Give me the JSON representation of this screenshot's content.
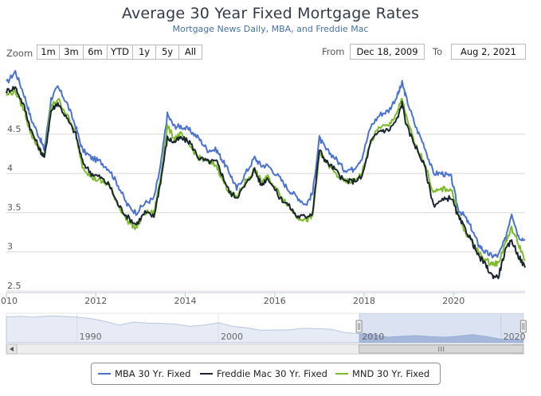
{
  "header": {
    "title": "Average 30 Year Fixed Mortgage Rates",
    "subtitle": "Mortgage News Daily, MBA, and Freddie Mac"
  },
  "toolbar": {
    "zoom_label": "Zoom",
    "zoom_buttons": [
      "1m",
      "3m",
      "6m",
      "YTD",
      "1y",
      "5y",
      "All"
    ],
    "from_label": "From",
    "from_value": "Dec 18, 2009",
    "to_label": "To",
    "to_value": "Aug 2, 2021"
  },
  "colors": {
    "mba": "#4a72d0",
    "freddie": "#1b2530",
    "mnd": "#7dbb2c",
    "navigator_fill": "#c8d3e8"
  },
  "chart_data": {
    "type": "line",
    "title": "Average 30 Year Fixed Mortgage Rates",
    "subtitle": "Mortgage News Daily, MBA, and Freddie Mac",
    "xlim": [
      2010.0,
      2021.6
    ],
    "ylim": [
      2.5,
      5.4
    ],
    "x_ticks": [
      "2010",
      "2012",
      "2014",
      "2016",
      "2018",
      "2020"
    ],
    "y_ticks": [
      "2.5",
      "3",
      "3.5",
      "4",
      "4.5"
    ],
    "grid": true,
    "legend_position": "bottom",
    "series": [
      {
        "name": "MBA 30 Yr. Fixed",
        "color": "#4a72d0",
        "points": [
          [
            2010.0,
            5.15
          ],
          [
            2010.2,
            5.3
          ],
          [
            2010.4,
            5.0
          ],
          [
            2010.55,
            4.7
          ],
          [
            2010.75,
            4.45
          ],
          [
            2010.85,
            4.3
          ],
          [
            2011.0,
            4.95
          ],
          [
            2011.15,
            5.1
          ],
          [
            2011.35,
            4.9
          ],
          [
            2011.55,
            4.6
          ],
          [
            2011.7,
            4.3
          ],
          [
            2011.9,
            4.2
          ],
          [
            2012.1,
            4.15
          ],
          [
            2012.3,
            4.05
          ],
          [
            2012.5,
            3.85
          ],
          [
            2012.7,
            3.6
          ],
          [
            2012.9,
            3.5
          ],
          [
            2013.1,
            3.62
          ],
          [
            2013.3,
            3.68
          ],
          [
            2013.45,
            4.1
          ],
          [
            2013.6,
            4.75
          ],
          [
            2013.75,
            4.6
          ],
          [
            2013.9,
            4.6
          ],
          [
            2014.1,
            4.55
          ],
          [
            2014.3,
            4.45
          ],
          [
            2014.5,
            4.3
          ],
          [
            2014.7,
            4.3
          ],
          [
            2014.85,
            4.15
          ],
          [
            2015.0,
            4.0
          ],
          [
            2015.15,
            3.8
          ],
          [
            2015.35,
            4.0
          ],
          [
            2015.55,
            4.2
          ],
          [
            2015.7,
            4.1
          ],
          [
            2015.85,
            4.1
          ],
          [
            2016.1,
            3.95
          ],
          [
            2016.3,
            3.8
          ],
          [
            2016.5,
            3.7
          ],
          [
            2016.7,
            3.6
          ],
          [
            2016.85,
            3.75
          ],
          [
            2017.0,
            4.45
          ],
          [
            2017.15,
            4.3
          ],
          [
            2017.35,
            4.2
          ],
          [
            2017.55,
            4.05
          ],
          [
            2017.75,
            4.05
          ],
          [
            2017.95,
            4.2
          ],
          [
            2018.15,
            4.6
          ],
          [
            2018.35,
            4.75
          ],
          [
            2018.55,
            4.8
          ],
          [
            2018.75,
            5.0
          ],
          [
            2018.85,
            5.15
          ],
          [
            2018.95,
            4.95
          ],
          [
            2019.15,
            4.6
          ],
          [
            2019.35,
            4.35
          ],
          [
            2019.55,
            4.0
          ],
          [
            2019.75,
            4.0
          ],
          [
            2019.95,
            3.95
          ],
          [
            2020.1,
            3.55
          ],
          [
            2020.25,
            3.45
          ],
          [
            2020.4,
            3.3
          ],
          [
            2020.55,
            3.1
          ],
          [
            2020.7,
            3.0
          ],
          [
            2020.85,
            2.95
          ],
          [
            2021.0,
            2.95
          ],
          [
            2021.15,
            3.15
          ],
          [
            2021.3,
            3.5
          ],
          [
            2021.45,
            3.2
          ],
          [
            2021.6,
            3.15
          ]
        ]
      },
      {
        "name": "Freddie Mac 30 Yr. Fixed",
        "color": "#1b2530",
        "points": [
          [
            2010.0,
            5.05
          ],
          [
            2010.2,
            5.1
          ],
          [
            2010.4,
            4.85
          ],
          [
            2010.55,
            4.55
          ],
          [
            2010.75,
            4.3
          ],
          [
            2010.85,
            4.2
          ],
          [
            2011.0,
            4.8
          ],
          [
            2011.15,
            4.9
          ],
          [
            2011.35,
            4.7
          ],
          [
            2011.55,
            4.5
          ],
          [
            2011.7,
            4.15
          ],
          [
            2011.9,
            4.0
          ],
          [
            2012.1,
            3.95
          ],
          [
            2012.3,
            3.85
          ],
          [
            2012.5,
            3.6
          ],
          [
            2012.7,
            3.45
          ],
          [
            2012.9,
            3.35
          ],
          [
            2013.1,
            3.5
          ],
          [
            2013.3,
            3.45
          ],
          [
            2013.45,
            3.9
          ],
          [
            2013.6,
            4.45
          ],
          [
            2013.75,
            4.4
          ],
          [
            2013.9,
            4.45
          ],
          [
            2014.1,
            4.4
          ],
          [
            2014.3,
            4.2
          ],
          [
            2014.5,
            4.15
          ],
          [
            2014.7,
            4.15
          ],
          [
            2014.85,
            3.95
          ],
          [
            2015.0,
            3.75
          ],
          [
            2015.15,
            3.7
          ],
          [
            2015.35,
            3.85
          ],
          [
            2015.55,
            4.05
          ],
          [
            2015.7,
            3.85
          ],
          [
            2015.85,
            3.95
          ],
          [
            2016.1,
            3.7
          ],
          [
            2016.3,
            3.6
          ],
          [
            2016.5,
            3.45
          ],
          [
            2016.7,
            3.45
          ],
          [
            2016.85,
            3.5
          ],
          [
            2017.0,
            4.3
          ],
          [
            2017.15,
            4.15
          ],
          [
            2017.35,
            4.05
          ],
          [
            2017.55,
            3.9
          ],
          [
            2017.75,
            3.9
          ],
          [
            2017.95,
            3.95
          ],
          [
            2018.15,
            4.4
          ],
          [
            2018.35,
            4.55
          ],
          [
            2018.55,
            4.55
          ],
          [
            2018.75,
            4.7
          ],
          [
            2018.85,
            4.9
          ],
          [
            2018.95,
            4.6
          ],
          [
            2019.15,
            4.35
          ],
          [
            2019.35,
            4.1
          ],
          [
            2019.55,
            3.6
          ],
          [
            2019.75,
            3.65
          ],
          [
            2019.95,
            3.7
          ],
          [
            2020.1,
            3.45
          ],
          [
            2020.25,
            3.3
          ],
          [
            2020.4,
            3.15
          ],
          [
            2020.55,
            2.95
          ],
          [
            2020.7,
            2.85
          ],
          [
            2020.85,
            2.7
          ],
          [
            2021.0,
            2.68
          ],
          [
            2021.15,
            3.0
          ],
          [
            2021.3,
            3.15
          ],
          [
            2021.45,
            2.95
          ],
          [
            2021.6,
            2.8
          ]
        ]
      },
      {
        "name": "MND 30 Yr. Fixed",
        "color": "#7dbb2c",
        "points": [
          [
            2010.0,
            5.0
          ],
          [
            2010.2,
            5.05
          ],
          [
            2010.4,
            4.8
          ],
          [
            2010.55,
            4.5
          ],
          [
            2010.75,
            4.3
          ],
          [
            2010.85,
            4.2
          ],
          [
            2011.0,
            4.85
          ],
          [
            2011.15,
            4.95
          ],
          [
            2011.35,
            4.75
          ],
          [
            2011.55,
            4.5
          ],
          [
            2011.7,
            4.1
          ],
          [
            2011.9,
            3.95
          ],
          [
            2012.1,
            3.9
          ],
          [
            2012.3,
            3.85
          ],
          [
            2012.5,
            3.6
          ],
          [
            2012.7,
            3.4
          ],
          [
            2012.9,
            3.3
          ],
          [
            2013.1,
            3.5
          ],
          [
            2013.3,
            3.5
          ],
          [
            2013.45,
            3.95
          ],
          [
            2013.6,
            4.6
          ],
          [
            2013.75,
            4.45
          ],
          [
            2013.9,
            4.5
          ],
          [
            2014.1,
            4.35
          ],
          [
            2014.3,
            4.2
          ],
          [
            2014.5,
            4.15
          ],
          [
            2014.7,
            4.1
          ],
          [
            2014.85,
            3.9
          ],
          [
            2015.0,
            3.75
          ],
          [
            2015.15,
            3.7
          ],
          [
            2015.35,
            3.9
          ],
          [
            2015.55,
            4.05
          ],
          [
            2015.7,
            3.9
          ],
          [
            2015.85,
            3.95
          ],
          [
            2016.1,
            3.75
          ],
          [
            2016.3,
            3.6
          ],
          [
            2016.5,
            3.45
          ],
          [
            2016.7,
            3.4
          ],
          [
            2016.85,
            3.45
          ],
          [
            2017.0,
            4.25
          ],
          [
            2017.15,
            4.15
          ],
          [
            2017.35,
            4.0
          ],
          [
            2017.55,
            3.9
          ],
          [
            2017.75,
            3.9
          ],
          [
            2017.95,
            4.0
          ],
          [
            2018.15,
            4.4
          ],
          [
            2018.35,
            4.6
          ],
          [
            2018.55,
            4.6
          ],
          [
            2018.75,
            4.8
          ],
          [
            2018.85,
            4.95
          ],
          [
            2018.95,
            4.7
          ],
          [
            2019.15,
            4.35
          ],
          [
            2019.35,
            4.15
          ],
          [
            2019.55,
            3.75
          ],
          [
            2019.75,
            3.8
          ],
          [
            2019.95,
            3.8
          ],
          [
            2020.1,
            3.5
          ],
          [
            2020.25,
            3.25
          ],
          [
            2020.4,
            3.15
          ],
          [
            2020.55,
            3.0
          ],
          [
            2020.7,
            2.9
          ],
          [
            2020.85,
            2.85
          ],
          [
            2021.0,
            2.85
          ],
          [
            2021.15,
            3.1
          ],
          [
            2021.3,
            3.3
          ],
          [
            2021.45,
            3.1
          ],
          [
            2021.6,
            2.9
          ]
        ]
      }
    ],
    "navigator": {
      "xlim": [
        1985.0,
        2021.6
      ],
      "x_ticks": [
        "1990",
        "2000",
        "2010",
        "2020"
      ],
      "selected_range": [
        2009.96,
        2021.59
      ],
      "points": [
        [
          1985.0,
          9.9
        ],
        [
          1986.0,
          10.1
        ],
        [
          1987.0,
          9.8
        ],
        [
          1988.0,
          10.2
        ],
        [
          1989.0,
          10.1
        ],
        [
          1990.0,
          9.8
        ],
        [
          1991.0,
          9.4
        ],
        [
          1992.0,
          8.5
        ],
        [
          1993.0,
          7.4
        ],
        [
          1994.0,
          8.3
        ],
        [
          1995.0,
          8.0
        ],
        [
          1996.0,
          7.9
        ],
        [
          1997.0,
          7.7
        ],
        [
          1998.0,
          7.0
        ],
        [
          1999.0,
          7.4
        ],
        [
          2000.0,
          8.1
        ],
        [
          2001.0,
          7.0
        ],
        [
          2002.0,
          6.6
        ],
        [
          2003.0,
          5.8
        ],
        [
          2004.0,
          5.9
        ],
        [
          2005.0,
          5.9
        ],
        [
          2006.0,
          6.4
        ],
        [
          2007.0,
          6.3
        ],
        [
          2008.0,
          6.1
        ],
        [
          2009.0,
          5.1
        ],
        [
          2010.0,
          4.7
        ],
        [
          2011.0,
          4.5
        ],
        [
          2012.0,
          3.7
        ],
        [
          2013.0,
          4.0
        ],
        [
          2014.0,
          4.2
        ],
        [
          2015.0,
          3.9
        ],
        [
          2016.0,
          3.7
        ],
        [
          2017.0,
          4.0
        ],
        [
          2018.0,
          4.5
        ],
        [
          2019.0,
          3.9
        ],
        [
          2020.0,
          3.1
        ],
        [
          2021.0,
          3.0
        ],
        [
          2021.6,
          2.9
        ]
      ]
    }
  }
}
